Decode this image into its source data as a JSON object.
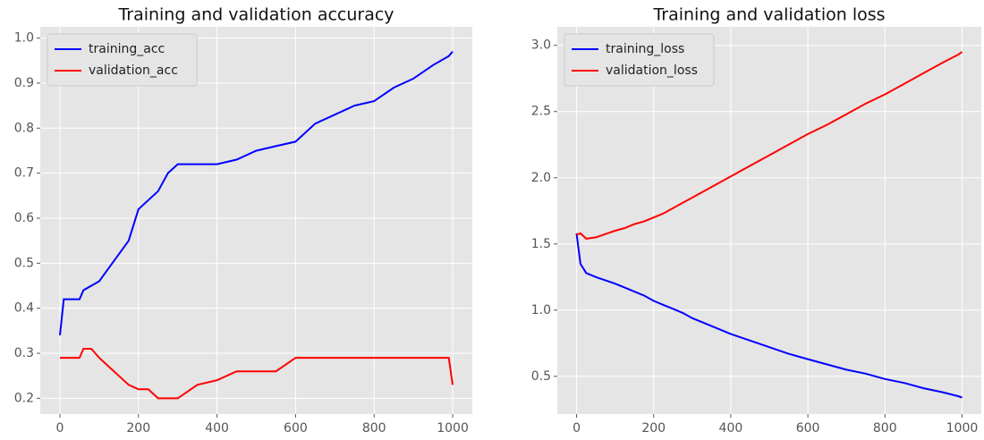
{
  "chart_data": [
    {
      "type": "line",
      "title": "Training and validation accuracy",
      "x": [
        0,
        10,
        25,
        50,
        60,
        80,
        100,
        125,
        150,
        175,
        200,
        225,
        250,
        275,
        300,
        350,
        400,
        450,
        500,
        550,
        600,
        650,
        700,
        750,
        800,
        850,
        900,
        950,
        990,
        1000
      ],
      "series": [
        {
          "name": "training_acc",
          "color": "#0000ff",
          "values": [
            0.34,
            0.42,
            0.42,
            0.42,
            0.44,
            0.45,
            0.46,
            0.49,
            0.52,
            0.55,
            0.62,
            0.64,
            0.66,
            0.7,
            0.72,
            0.72,
            0.72,
            0.73,
            0.75,
            0.76,
            0.77,
            0.81,
            0.83,
            0.85,
            0.86,
            0.89,
            0.91,
            0.94,
            0.96,
            0.97
          ]
        },
        {
          "name": "validation_acc",
          "color": "#ff0000",
          "values": [
            0.29,
            0.29,
            0.29,
            0.29,
            0.31,
            0.31,
            0.29,
            0.27,
            0.25,
            0.23,
            0.22,
            0.22,
            0.2,
            0.2,
            0.2,
            0.23,
            0.24,
            0.26,
            0.26,
            0.26,
            0.29,
            0.29,
            0.29,
            0.29,
            0.29,
            0.29,
            0.29,
            0.29,
            0.29,
            0.23
          ]
        }
      ],
      "xlim": [
        -50,
        1050
      ],
      "xticks": [
        0,
        200,
        400,
        600,
        800,
        1000
      ],
      "ylim": [
        0.165,
        1.025
      ],
      "yticks": [
        0.2,
        0.3,
        0.4,
        0.5,
        0.6,
        0.7,
        0.8,
        0.9,
        {
          "value": 1,
          "label": "1.0"
        }
      ],
      "grid": true,
      "legend": "upper left"
    },
    {
      "type": "line",
      "title": "Training and validation loss",
      "x": [
        0,
        10,
        25,
        50,
        60,
        80,
        100,
        125,
        150,
        175,
        200,
        225,
        250,
        275,
        300,
        350,
        400,
        450,
        500,
        550,
        600,
        650,
        700,
        750,
        800,
        850,
        900,
        950,
        990,
        1000
      ],
      "series": [
        {
          "name": "training_loss",
          "color": "#0000ff",
          "values": [
            1.58,
            1.35,
            1.28,
            1.25,
            1.24,
            1.22,
            1.2,
            1.17,
            1.14,
            1.11,
            1.07,
            1.04,
            1.01,
            0.98,
            0.94,
            0.88,
            0.82,
            0.77,
            0.72,
            0.67,
            0.63,
            0.59,
            0.55,
            0.52,
            0.48,
            0.45,
            0.41,
            0.38,
            0.35,
            0.34
          ]
        },
        {
          "name": "validation_loss",
          "color": "#ff0000",
          "values": [
            1.57,
            1.58,
            1.54,
            1.55,
            1.56,
            1.58,
            1.6,
            1.62,
            1.65,
            1.67,
            1.7,
            1.73,
            1.77,
            1.81,
            1.85,
            1.93,
            2.01,
            2.09,
            2.17,
            2.25,
            2.33,
            2.4,
            2.48,
            2.56,
            2.63,
            2.71,
            2.79,
            2.87,
            2.93,
            2.95
          ]
        }
      ],
      "xlim": [
        -50,
        1050
      ],
      "xticks": [
        0,
        200,
        400,
        600,
        800,
        1000
      ],
      "ylim": [
        0.215,
        3.14
      ],
      "yticks": [
        0.5,
        {
          "value": 1,
          "label": "1.0"
        },
        1.5,
        {
          "value": 2,
          "label": "2.0"
        },
        2.5,
        {
          "value": 3,
          "label": "3.0"
        }
      ],
      "grid": true,
      "legend": "upper left"
    }
  ]
}
